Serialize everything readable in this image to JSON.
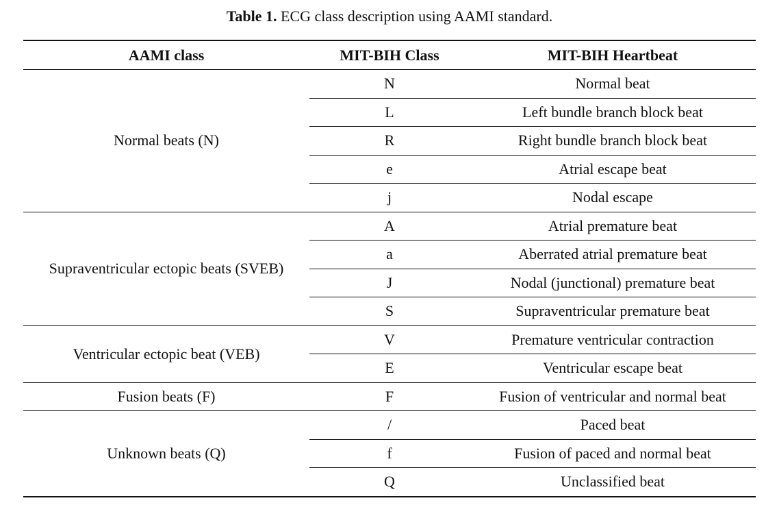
{
  "caption": {
    "label": "Table 1.",
    "text": "ECG class description using AAMI standard."
  },
  "table": {
    "headers": [
      "AAMI class",
      "MIT-BIH Class",
      "MIT-BIH Heartbeat"
    ],
    "groups": [
      {
        "aami_class": "Normal beats (N)",
        "rows": [
          {
            "code": "N",
            "heartbeat": "Normal beat"
          },
          {
            "code": "L",
            "heartbeat": "Left bundle branch block beat"
          },
          {
            "code": "R",
            "heartbeat": "Right bundle branch block beat"
          },
          {
            "code": "e",
            "heartbeat": "Atrial escape beat"
          },
          {
            "code": "j",
            "heartbeat": "Nodal escape"
          }
        ]
      },
      {
        "aami_class": "Supraventricular ectopic beats (SVEB)",
        "rows": [
          {
            "code": "A",
            "heartbeat": "Atrial premature beat"
          },
          {
            "code": "a",
            "heartbeat": "Aberrated atrial premature beat"
          },
          {
            "code": "J",
            "heartbeat": "Nodal (junctional) premature beat"
          },
          {
            "code": "S",
            "heartbeat": "Supraventricular premature beat"
          }
        ]
      },
      {
        "aami_class": "Ventricular ectopic beat (VEB)",
        "rows": [
          {
            "code": "V",
            "heartbeat": "Premature ventricular contraction"
          },
          {
            "code": "E",
            "heartbeat": "Ventricular escape beat"
          }
        ]
      },
      {
        "aami_class": "Fusion beats (F)",
        "rows": [
          {
            "code": "F",
            "heartbeat": "Fusion of ventricular and normal beat"
          }
        ]
      },
      {
        "aami_class": "Unknown beats (Q)",
        "rows": [
          {
            "code": "/",
            "heartbeat": "Paced beat"
          },
          {
            "code": "f",
            "heartbeat": "Fusion of paced and normal beat"
          },
          {
            "code": "Q",
            "heartbeat": "Unclassified beat"
          }
        ]
      }
    ]
  }
}
